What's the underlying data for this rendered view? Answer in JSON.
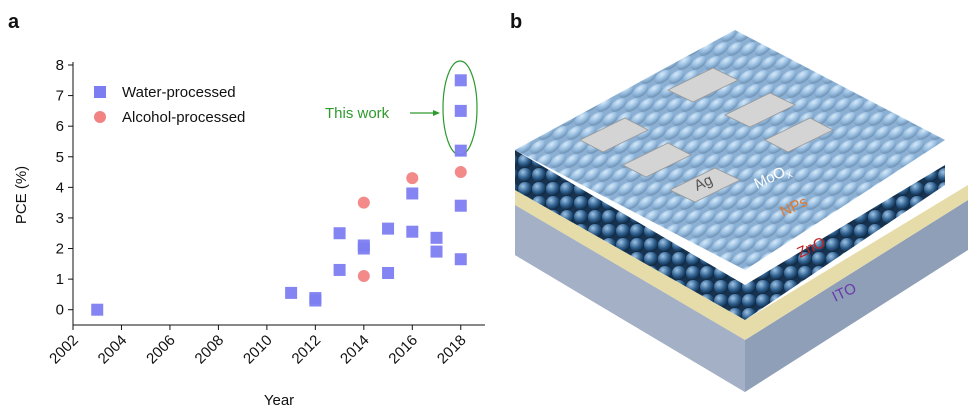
{
  "panels": {
    "a": "a",
    "b": "b"
  },
  "chart_data": {
    "type": "scatter",
    "xlabel": "Year",
    "ylabel": "PCE (%)",
    "xlim": [
      2002,
      2019
    ],
    "ylim": [
      -0.5,
      8
    ],
    "xticks": [
      2002,
      2004,
      2006,
      2008,
      2010,
      2012,
      2014,
      2016,
      2018
    ],
    "yticks": [
      0,
      1,
      2,
      3,
      4,
      5,
      6,
      7,
      8
    ],
    "annotation": "This work",
    "series": [
      {
        "name": "Water-processed",
        "color": "#7d7df2",
        "marker": "square",
        "x": [
          2003,
          2011,
          2012,
          2012,
          2013,
          2013,
          2014,
          2014,
          2015,
          2015,
          2016,
          2016,
          2017,
          2017,
          2018,
          2018,
          2018,
          2018,
          2018
        ],
        "values": [
          0,
          0.55,
          0.3,
          0.38,
          2.5,
          1.3,
          2.0,
          2.1,
          2.65,
          1.2,
          3.8,
          2.55,
          2.35,
          1.9,
          7.5,
          6.5,
          5.2,
          3.4,
          1.65
        ]
      },
      {
        "name": "Alcohol-processed",
        "color": "#f28383",
        "marker": "circle",
        "x": [
          2014,
          2014,
          2016,
          2018
        ],
        "values": [
          3.5,
          1.1,
          4.3,
          4.5
        ]
      }
    ]
  },
  "diagram": {
    "ag": "Ag",
    "moox": {
      "base": "MoO",
      "sub": "x"
    },
    "nps": "NPs",
    "zno": "ZnO",
    "ito": "ITO"
  }
}
